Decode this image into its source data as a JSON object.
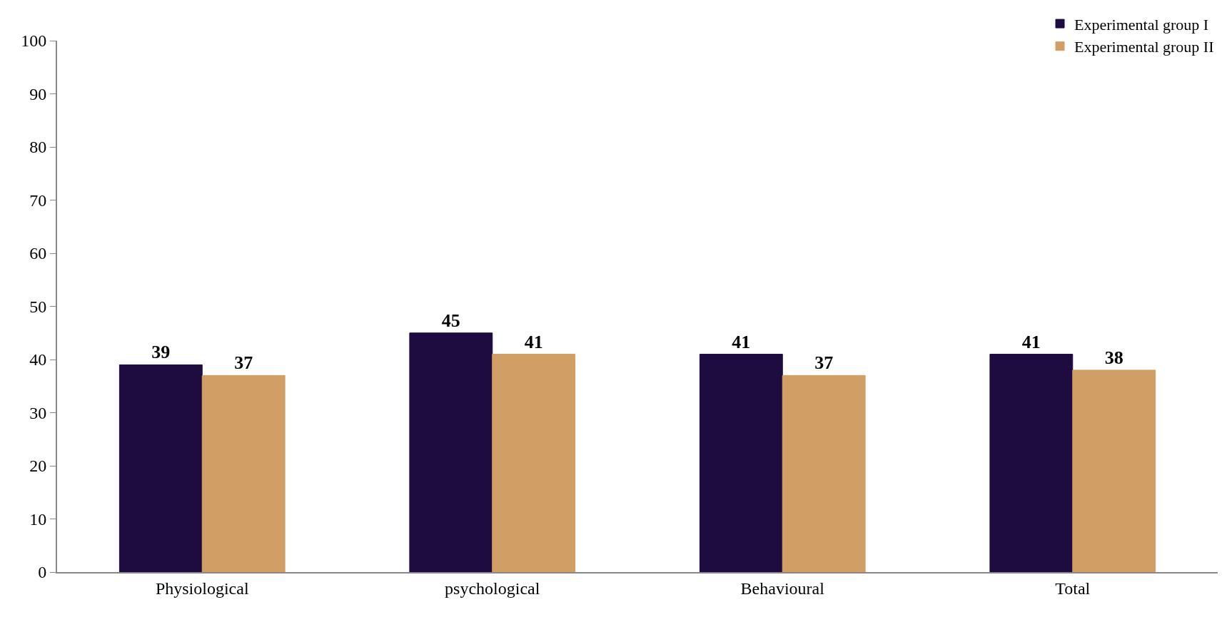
{
  "chart_data": {
    "type": "bar",
    "categories": [
      "Physiological",
      "psychological",
      "Behavioural",
      "Total"
    ],
    "series": [
      {
        "name": "Experimental group I",
        "color": "#1e0b40",
        "values": [
          39,
          45,
          41,
          41
        ]
      },
      {
        "name": "Experimental group II",
        "color": "#d19e66",
        "values": [
          37,
          41,
          37,
          38
        ]
      }
    ],
    "ylim": [
      0,
      100
    ],
    "yticks": [
      0,
      10,
      20,
      30,
      40,
      50,
      60,
      70,
      80,
      90,
      100
    ],
    "grid": false,
    "legend": "top right",
    "data_labels": true
  }
}
